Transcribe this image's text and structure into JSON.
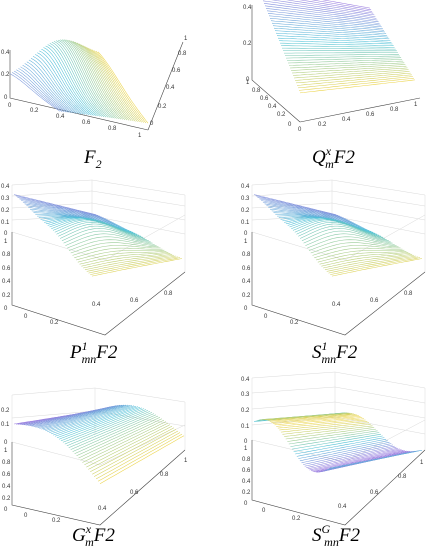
{
  "figure": {
    "panels": [
      {
        "id": "F2",
        "caption": {
          "base": "F",
          "sup": "",
          "sub": "2",
          "tail": ""
        }
      },
      {
        "id": "QxmF2",
        "caption": {
          "base": "Q",
          "sup": "x",
          "sub": "m",
          "tail": "F2"
        }
      },
      {
        "id": "P1mnF2",
        "caption": {
          "base": "P",
          "sup": "1",
          "sub": "mn",
          "tail": "F2"
        }
      },
      {
        "id": "S1mnF2",
        "caption": {
          "base": "S",
          "sup": "1",
          "sub": "mn",
          "tail": "F2"
        }
      },
      {
        "id": "GxmF2",
        "caption": {
          "base": "G",
          "sup": "x",
          "sub": "m",
          "tail": "F2"
        }
      },
      {
        "id": "SGmnF2",
        "caption": {
          "base": "S",
          "sup": "G",
          "sub": "mn",
          "tail": "F2"
        }
      }
    ]
  },
  "chart_data": [
    {
      "type": "surface",
      "panel": "F2",
      "zlim": [
        0,
        0.4
      ],
      "z_ticks": [
        "0",
        "0.2",
        "0.4"
      ],
      "x_ticks": [
        "0",
        "0.2",
        "0.4",
        "0.6",
        "0.8",
        "1"
      ],
      "y_ticks": [
        "0",
        "0.2",
        "0.4",
        "0.6",
        "0.8",
        "1"
      ],
      "grid": false
    },
    {
      "type": "surface",
      "panel": "QxmF2",
      "zlim": [
        0,
        0.4
      ],
      "z_ticks": [
        "0",
        "0.2",
        "0.4"
      ],
      "x_ticks": [
        "0",
        "0.2",
        "0.4",
        "0.6",
        "0.8",
        "1"
      ],
      "y_ticks": [
        "0",
        "0.2",
        "0.4",
        "0.6",
        "0.8",
        "1"
      ],
      "grid": false
    },
    {
      "type": "surface",
      "panel": "P1mnF2",
      "zlim": [
        0,
        0.4
      ],
      "z_ticks": [
        "0",
        "0.1",
        "0.2",
        "0.3",
        "0.4"
      ],
      "x_ticks": [
        "0",
        "0.2",
        "0.4",
        "0.6",
        "0.8"
      ],
      "y_ticks": [
        "0",
        "0.2",
        "0.4",
        "0.6",
        "0.8",
        "1"
      ],
      "grid": true
    },
    {
      "type": "surface",
      "panel": "S1mnF2",
      "zlim": [
        0,
        0.4
      ],
      "z_ticks": [
        "0",
        "0.1",
        "0.2",
        "0.3",
        "0.4"
      ],
      "x_ticks": [
        "0",
        "0.2",
        "0.4",
        "0.6",
        "0.8"
      ],
      "y_ticks": [
        "0",
        "0.2",
        "0.4",
        "0.6",
        "0.8",
        "1"
      ],
      "grid": true
    },
    {
      "type": "surface",
      "panel": "GxmF2",
      "zlim": [
        0,
        0.2
      ],
      "z_ticks": [
        "0",
        "0.1",
        "0.2"
      ],
      "x_ticks": [
        "0",
        "0.2",
        "0.4",
        "0.6",
        "0.8",
        "1"
      ],
      "y_ticks": [
        "0",
        "0.2",
        "0.4",
        "0.6",
        "0.8",
        "1"
      ],
      "grid": true
    },
    {
      "type": "surface",
      "panel": "SGmnF2",
      "zlim": [
        0,
        0.4
      ],
      "z_ticks": [
        "0",
        "0.1",
        "0.2",
        "0.3",
        "0.4"
      ],
      "x_ticks": [
        "0",
        "0.2",
        "0.4",
        "0.6",
        "0.8",
        "1"
      ],
      "y_ticks": [
        "0",
        "0.2",
        "0.4",
        "0.6",
        "0.8",
        "1"
      ],
      "grid": true
    }
  ],
  "colors": {
    "low": "#9d7fe0",
    "mid": "#4fc3d8",
    "high": "#ecd44a"
  }
}
